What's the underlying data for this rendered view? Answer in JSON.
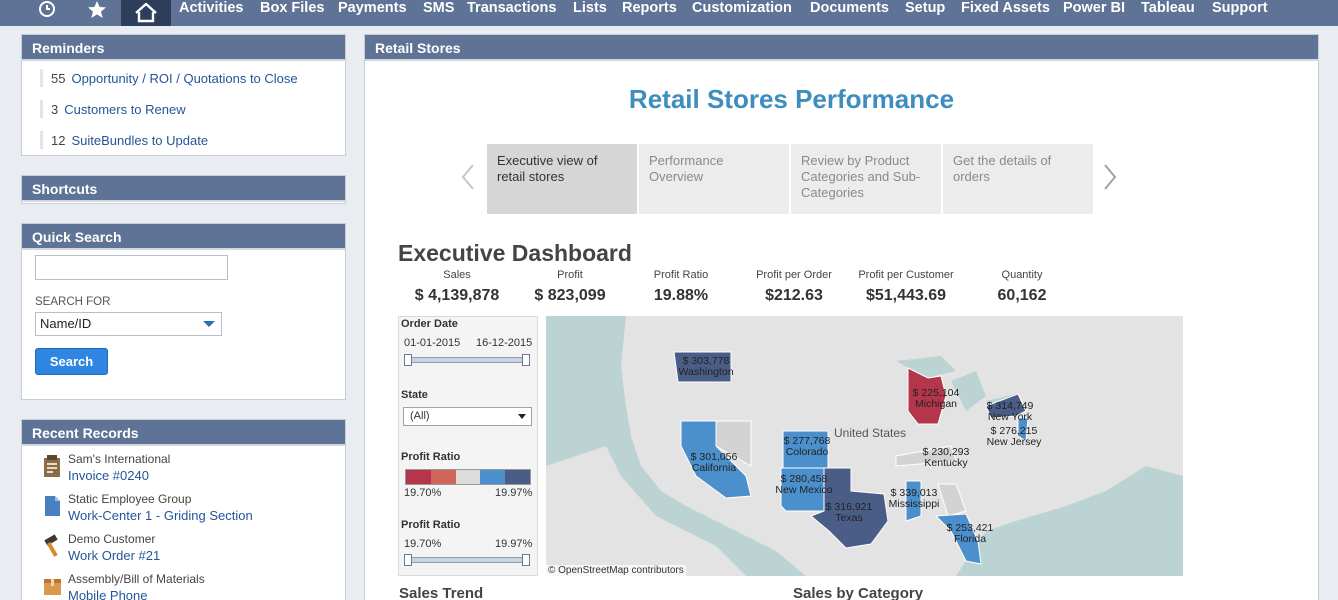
{
  "nav": {
    "items": [
      "Activities",
      "Box Files",
      "Payments",
      "SMS",
      "Transactions",
      "Lists",
      "Reports",
      "Customization",
      "Documents",
      "Setup",
      "Fixed Assets",
      "Power BI",
      "Tableau",
      "Support"
    ]
  },
  "reminders": {
    "title": "Reminders",
    "items": [
      {
        "count": "55",
        "label": "Opportunity / ROI / Quotations to Close"
      },
      {
        "count": "3",
        "label": "Customers to Renew"
      },
      {
        "count": "12",
        "label": "SuiteBundles to Update"
      }
    ]
  },
  "shortcuts": {
    "title": "Shortcuts"
  },
  "quick_search": {
    "title": "Quick Search",
    "input_value": "",
    "search_for_label": "SEARCH FOR",
    "select_value": "Name/ID",
    "button_label": "Search"
  },
  "recent_records": {
    "title": "Recent Records",
    "items": [
      {
        "type": "Sam's International",
        "name": "Invoice #0240",
        "icon": "invoice-icon"
      },
      {
        "type": "Static Employee Group",
        "name": "Work-Center 1 - Griding Section",
        "icon": "document-icon"
      },
      {
        "type": "Demo Customer",
        "name": "Work Order #21",
        "icon": "hammer-icon"
      },
      {
        "type": "Assembly/Bill of Materials",
        "name": "Mobile Phone",
        "icon": "box-icon"
      }
    ]
  },
  "main": {
    "panel_title": "Retail Stores",
    "title": "Retail Stores Performance",
    "story_tabs": [
      {
        "label": "Executive view of retail stores",
        "active": true
      },
      {
        "label": "Performance Overview",
        "active": false
      },
      {
        "label": "Review by Product Categories and Sub-Categories",
        "active": false
      },
      {
        "label": "Get the details of orders",
        "active": false
      }
    ],
    "dashboard_title": "Executive Dashboard",
    "kpis": [
      {
        "label": "Sales",
        "value": "$ 4,139,878"
      },
      {
        "label": "Profit",
        "value": "$ 823,099"
      },
      {
        "label": "Profit Ratio",
        "value": "19.88%"
      },
      {
        "label": "Profit per Order",
        "value": "$212.63"
      },
      {
        "label": "Profit per Customer",
        "value": "$51,443.69"
      },
      {
        "label": "Quantity",
        "value": "60,162"
      }
    ],
    "filters": {
      "order_date_label": "Order Date",
      "date_start": "01-01-2015",
      "date_end": "16-12-2015",
      "state_label": "State",
      "state_value": "(All)",
      "profit_ratio_label": "Profit Ratio",
      "legend_min": "19.70%",
      "legend_max": "19.97%",
      "profit_ratio_slider_label": "Profit Ratio",
      "slider_min": "19.70%",
      "slider_max": "19.97%"
    },
    "map": {
      "country_label": "United States",
      "credit": "© OpenStreetMap contributors",
      "states": [
        {
          "value": "$ 303,778",
          "name": "Washington"
        },
        {
          "value": "$ 225,104",
          "name": "Michigan"
        },
        {
          "value": "$ 314,749",
          "name": "New York"
        },
        {
          "value": "$ 276,215",
          "name": "New Jersey"
        },
        {
          "value": "$ 277,768",
          "name": "Colorado"
        },
        {
          "value": "$ 301,056",
          "name": "California"
        },
        {
          "value": "$ 230,293",
          "name": "Kentucky"
        },
        {
          "value": "$ 280,458",
          "name": "New Mexico"
        },
        {
          "value": "$ 339,013",
          "name": "Mississippi"
        },
        {
          "value": "$ 316,921",
          "name": "Texas"
        },
        {
          "value": "$ 253,421",
          "name": "Florida"
        }
      ]
    },
    "sales_trend_title": "Sales Trend",
    "sales_by_category_title": "Sales by Category"
  },
  "colors": {
    "nav": "#5f7396",
    "home_active": "#2c3e5c",
    "title": "#3d8dbf",
    "link": "#255599",
    "state_dark": "#4a5d87",
    "state_light": "#4b8fcd",
    "state_red": "#b5364a",
    "state_grey": "#d3d3d3"
  }
}
